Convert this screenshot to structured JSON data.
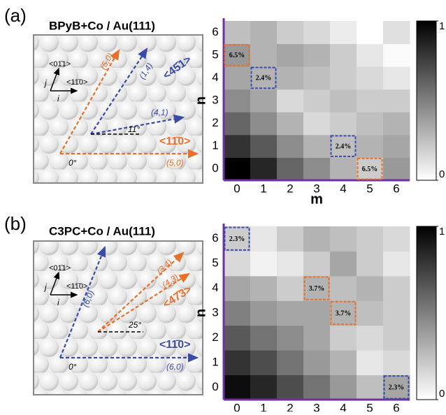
{
  "panel_labels": [
    "(a)",
    "(b)"
  ],
  "diagrams": [
    {
      "title": "BPyB+Co / Au(111)",
      "dir_j": "<01̄1>",
      "dir_i": "<11̄0>",
      "j": "j",
      "i": "i",
      "labels": [
        "(5,0)",
        "(1,4)",
        "<45̄1>",
        "(4,1)",
        "11°",
        "<11̄0>",
        "0°",
        "(5,0)"
      ]
    },
    {
      "title": "C3PC+Co / Au(111)",
      "dir_j": "<01̄1>",
      "dir_i": "<11̄0>",
      "j": "j",
      "i": "i",
      "labels": [
        "(6,0)",
        "(3,4)",
        "(4,3)",
        "<47̄3>",
        "25°",
        "<11̄0>",
        "0°",
        "(6,0)"
      ]
    }
  ],
  "chart_data": [
    {
      "type": "heatmap",
      "x_label": "m",
      "y_label": "n",
      "xticks": [
        0,
        1,
        2,
        3,
        4,
        5,
        6
      ],
      "yticks": [
        0,
        1,
        2,
        3,
        4,
        5,
        6
      ],
      "zlim": [
        0,
        1
      ],
      "colorbar_ticks": [
        0,
        1
      ],
      "values": [
        [
          1.0,
          0.85,
          0.6,
          0.45,
          0.3,
          0.2,
          0.4
        ],
        [
          0.8,
          0.65,
          0.45,
          0.3,
          0.25,
          0.3,
          0.35
        ],
        [
          0.6,
          0.45,
          0.3,
          0.15,
          0.2,
          0.25,
          0.3
        ],
        [
          0.45,
          0.35,
          0.15,
          0.2,
          0.25,
          0.2,
          0.2
        ],
        [
          0.35,
          0.3,
          0.3,
          0.25,
          0.2,
          0.15,
          0.1
        ],
        [
          0.4,
          0.3,
          0.35,
          0.3,
          0.2,
          0.1,
          0.02
        ],
        [
          0.25,
          0.3,
          0.2,
          0.15,
          0.08,
          0.0,
          0.12
        ]
      ],
      "annotations": [
        {
          "text": "6.5%",
          "m": 0,
          "n": 5,
          "color": "#e8702a"
        },
        {
          "text": "2.4%",
          "m": 1,
          "n": 4,
          "color": "#3a4aa8"
        },
        {
          "text": "2.4%",
          "m": 4,
          "n": 1,
          "color": "#3a4aa8"
        },
        {
          "text": "6.5%",
          "m": 5,
          "n": 0,
          "color": "#e8702a"
        }
      ]
    },
    {
      "type": "heatmap",
      "x_label": "m",
      "y_label": "n",
      "xticks": [
        0,
        1,
        2,
        3,
        4,
        5,
        6
      ],
      "yticks": [
        0,
        1,
        2,
        3,
        4,
        5,
        6
      ],
      "zlim": [
        0,
        1
      ],
      "colorbar_ticks": [
        0,
        1
      ],
      "values": [
        [
          0.95,
          0.85,
          0.7,
          0.55,
          0.4,
          0.25,
          0.35
        ],
        [
          0.8,
          0.7,
          0.55,
          0.4,
          0.3,
          0.1,
          0.15
        ],
        [
          0.65,
          0.55,
          0.45,
          0.35,
          0.2,
          0.15,
          0.2
        ],
        [
          0.5,
          0.4,
          0.35,
          0.35,
          0.3,
          0.25,
          0.2
        ],
        [
          0.35,
          0.3,
          0.2,
          0.3,
          0.25,
          0.3,
          0.2
        ],
        [
          0.15,
          0.05,
          0.1,
          0.2,
          0.35,
          0.2,
          0.1
        ],
        [
          0.2,
          0.1,
          0.2,
          0.3,
          0.25,
          0.2,
          0.15
        ]
      ],
      "annotations": [
        {
          "text": "2.3%",
          "m": 0,
          "n": 6,
          "color": "#3a4aa8"
        },
        {
          "text": "3.7%",
          "m": 3,
          "n": 4,
          "color": "#e8702a"
        },
        {
          "text": "3.7%",
          "m": 4,
          "n": 3,
          "color": "#e8702a"
        },
        {
          "text": "2.3%",
          "m": 6,
          "n": 0,
          "color": "#3a4aa8"
        }
      ]
    }
  ]
}
